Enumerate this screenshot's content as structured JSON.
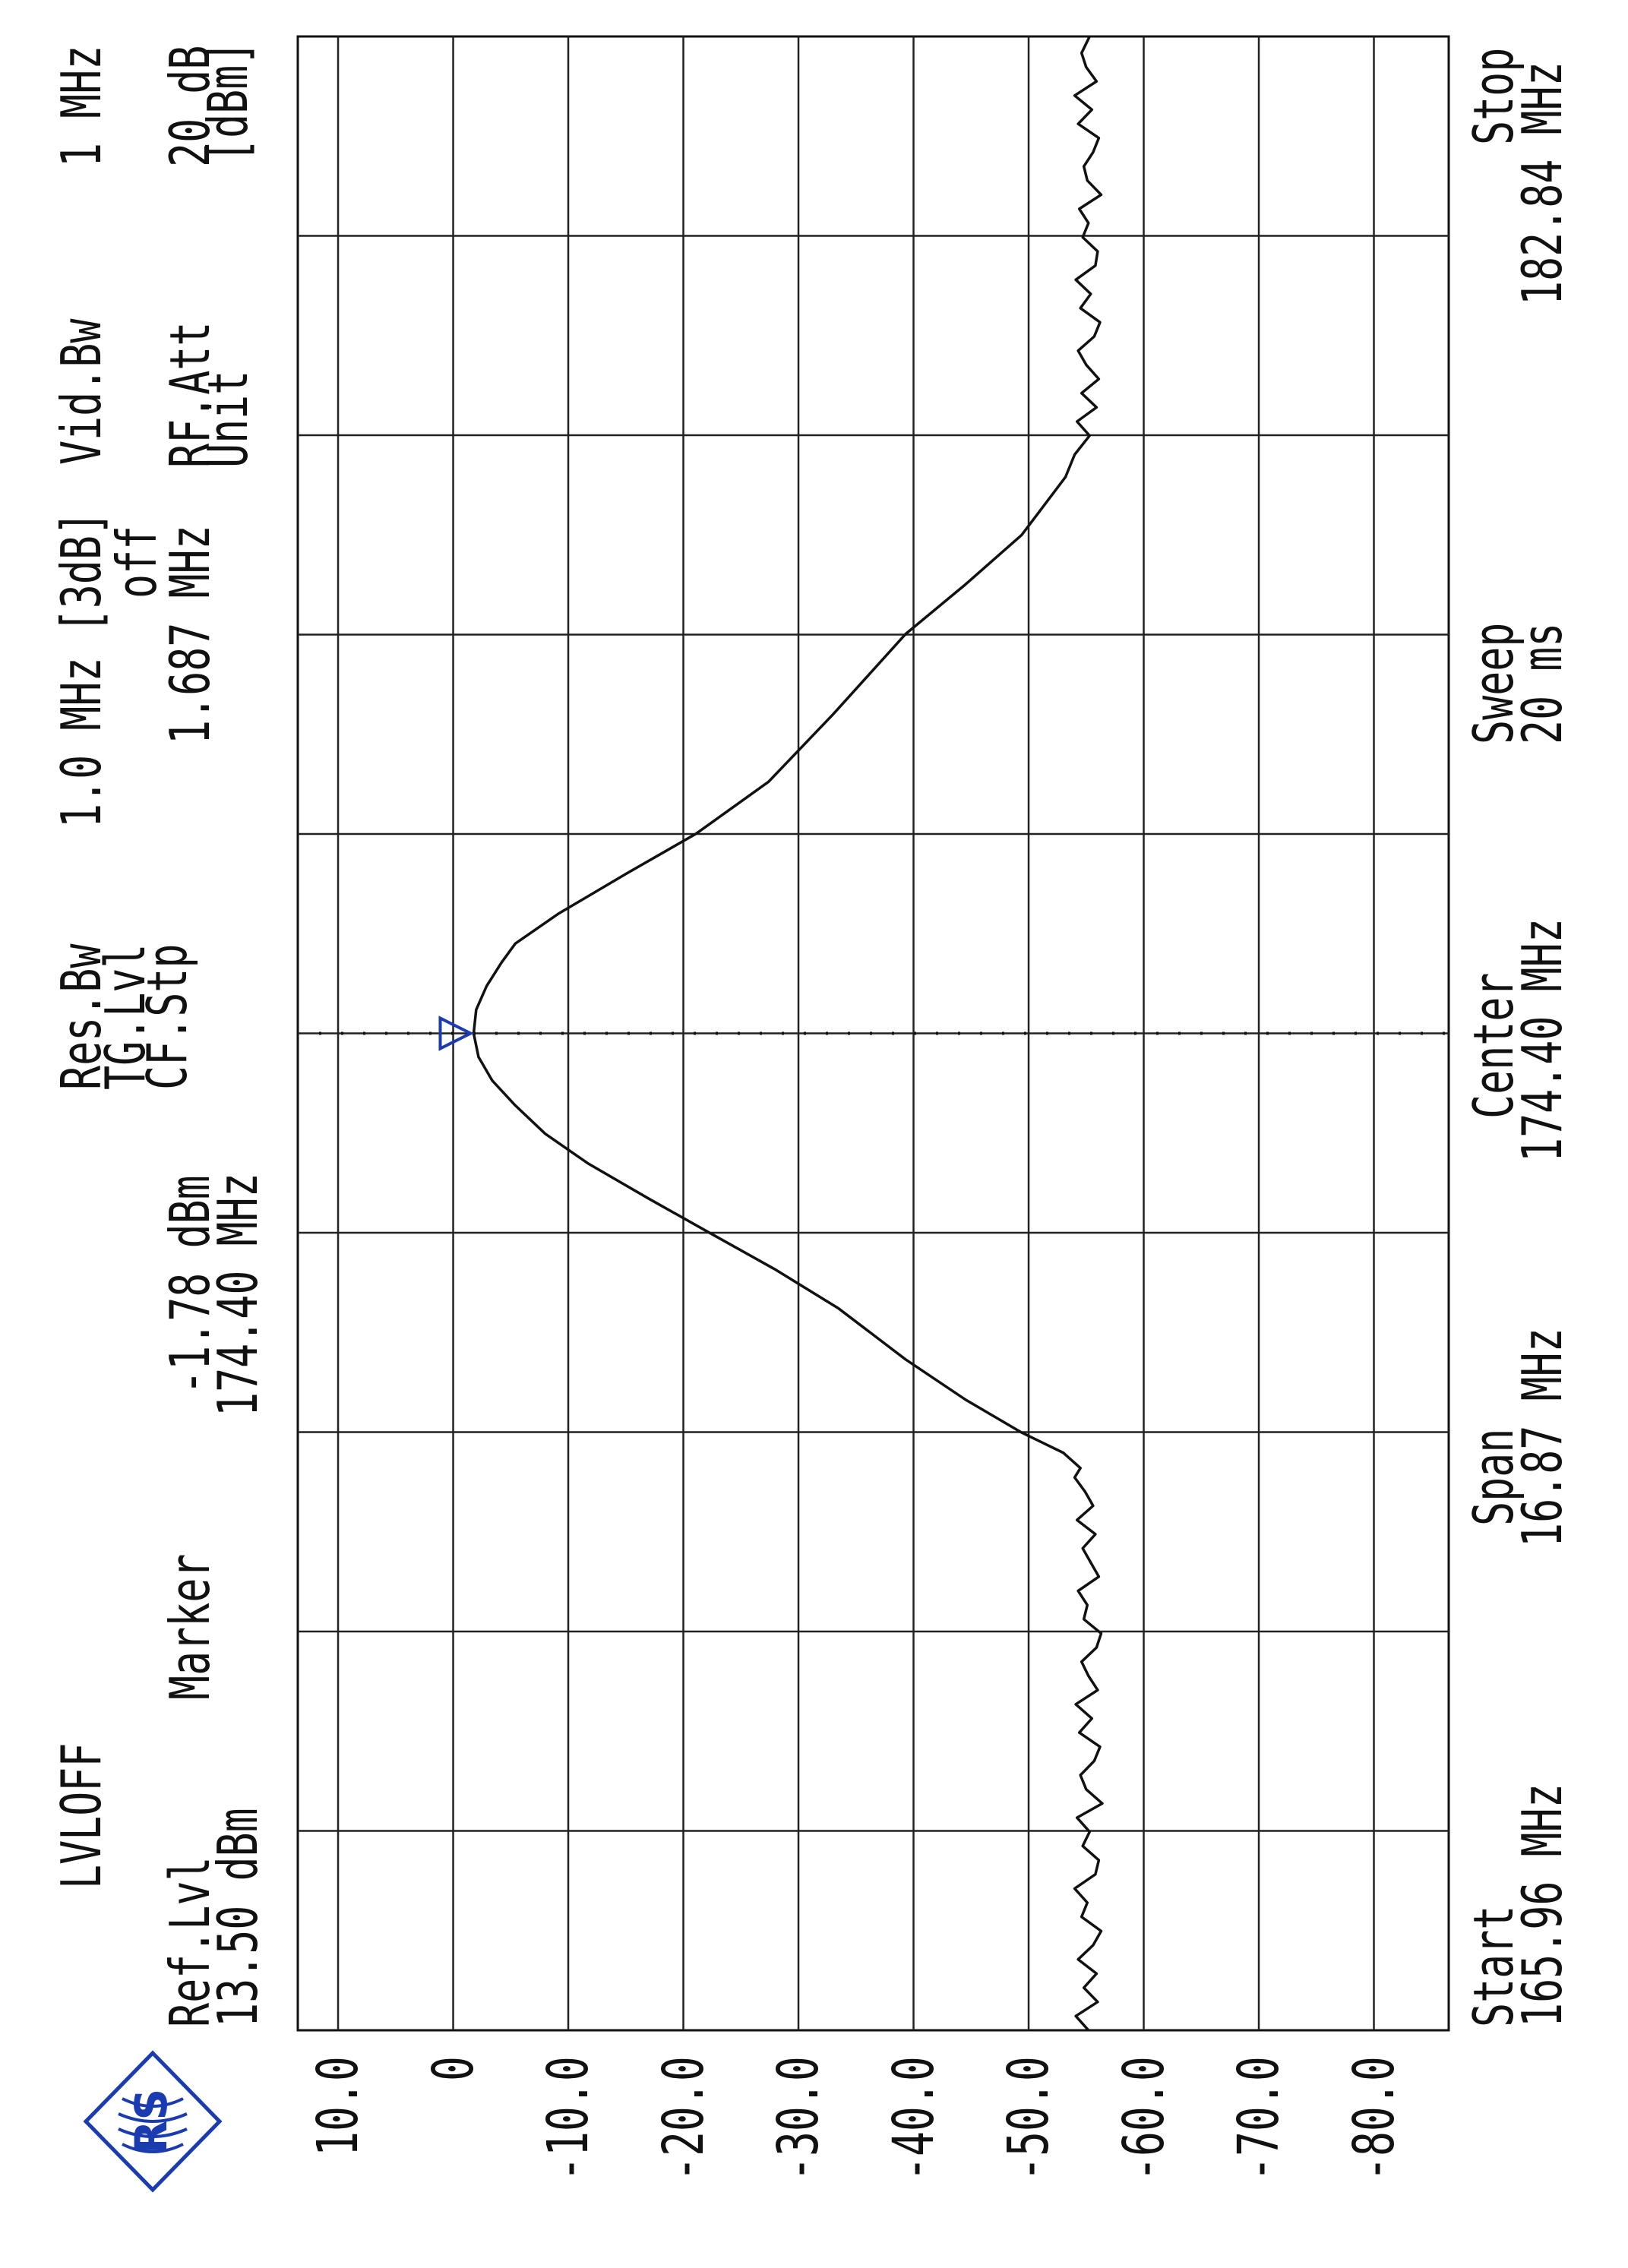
{
  "header": {
    "lvloff": "LVLOFF",
    "res_bw_label": "Res.Bw",
    "res_bw_value": "1.0 MHz [3dB]",
    "vid_bw_label": "Vid.Bw",
    "vid_bw_value": "1 MHz",
    "tg_lvl_label": "TG.Lvl",
    "tg_lvl_value": "off",
    "ref_lvl_label": "Ref.Lvl",
    "ref_lvl_value": "13.50 dBm",
    "marker_label": "Marker",
    "marker_level": "-1.78 dBm",
    "marker_freq": "174.40 MHz",
    "cf_stp_label": "CF.Stp",
    "cf_stp_value": "1.687 MHz",
    "rf_att_label": "RF.Att",
    "rf_att_value": "20 dB",
    "unit_label": "Unit",
    "unit_value": "[dBm]"
  },
  "footer": {
    "start_label": "Start",
    "start_value": "165.96 MHz",
    "span_label": "Span",
    "span_value": "16.87 MHz",
    "center_label": "Center",
    "center_value": "174.40 MHz",
    "sweep_label": "Sweep",
    "sweep_value": "20 ms",
    "stop_label": "Stop",
    "stop_value": "182.84 MHz"
  },
  "logo": {
    "text": "R&S",
    "color": "#1a3cb0"
  },
  "chart_data": {
    "type": "line",
    "orientation": "rotated 90° counter-clockwise (frequency runs bottom to top, level runs right to left)",
    "xlabel": "",
    "ylabel": "",
    "xlim": [
      165.96,
      182.84
    ],
    "ylim": [
      -86.5,
      13.5
    ],
    "x_divisions": 10,
    "y_ticks": [
      10,
      0,
      -10,
      -20,
      -30,
      -40,
      -50,
      -60,
      -70,
      -80
    ],
    "y_tick_labels": [
      "10.0",
      "0",
      "-10.0",
      "-20.0",
      "-30.0",
      "-40.0",
      "-50.0",
      "-60.0",
      "-70.0",
      "-80.0"
    ],
    "grid": true,
    "trace_color": "#111111",
    "marker": {
      "x": 174.4,
      "y": -1.78,
      "color": "#1a3cb0",
      "shape": "triangle"
    },
    "marker_line": {
      "x": 174.4,
      "style": "dotted"
    },
    "series": [
      {
        "points": [
          [
            165.96,
            -55.2
          ],
          [
            166.08,
            -54.1
          ],
          [
            166.2,
            -56.0
          ],
          [
            166.32,
            -54.8
          ],
          [
            166.44,
            -55.9
          ],
          [
            166.56,
            -54.3
          ],
          [
            166.68,
            -55.6
          ],
          [
            166.8,
            -56.3
          ],
          [
            166.92,
            -54.6
          ],
          [
            167.04,
            -55.1
          ],
          [
            167.16,
            -54.0
          ],
          [
            167.28,
            -55.8
          ],
          [
            167.4,
            -56.1
          ],
          [
            167.52,
            -54.7
          ],
          [
            167.64,
            -55.3
          ],
          [
            167.76,
            -54.2
          ],
          [
            167.88,
            -56.4
          ],
          [
            168.0,
            -55.0
          ],
          [
            168.12,
            -54.5
          ],
          [
            168.24,
            -55.7
          ],
          [
            168.36,
            -56.2
          ],
          [
            168.48,
            -54.4
          ],
          [
            168.6,
            -55.5
          ],
          [
            168.72,
            -54.1
          ],
          [
            168.84,
            -56.0
          ],
          [
            168.96,
            -55.2
          ],
          [
            169.08,
            -54.6
          ],
          [
            169.2,
            -55.9
          ],
          [
            169.32,
            -56.3
          ],
          [
            169.44,
            -54.8
          ],
          [
            169.56,
            -55.1
          ],
          [
            169.68,
            -54.3
          ],
          [
            169.8,
            -56.1
          ],
          [
            169.92,
            -55.4
          ],
          [
            170.04,
            -54.7
          ],
          [
            170.16,
            -55.8
          ],
          [
            170.28,
            -54.2
          ],
          [
            170.4,
            -55.6
          ],
          [
            170.52,
            -54.9
          ],
          [
            170.64,
            -54.0
          ],
          [
            170.72,
            -54.5
          ],
          [
            170.85,
            -53.0
          ],
          [
            171.02,
            -49.4
          ],
          [
            171.3,
            -44.5
          ],
          [
            171.64,
            -39.3
          ],
          [
            172.07,
            -33.5
          ],
          [
            172.4,
            -28.0
          ],
          [
            172.71,
            -22.3
          ],
          [
            173.0,
            -17.0
          ],
          [
            173.3,
            -11.7
          ],
          [
            173.55,
            -8.0
          ],
          [
            173.79,
            -5.4
          ],
          [
            174.0,
            -3.4
          ],
          [
            174.2,
            -2.2
          ],
          [
            174.4,
            -1.78
          ],
          [
            174.6,
            -2.0
          ],
          [
            174.8,
            -2.9
          ],
          [
            175.0,
            -4.2
          ],
          [
            175.16,
            -5.4
          ],
          [
            175.41,
            -9.1
          ],
          [
            175.75,
            -15.0
          ],
          [
            176.09,
            -21.1
          ],
          [
            176.53,
            -27.4
          ],
          [
            177.1,
            -33.0
          ],
          [
            177.78,
            -39.3
          ],
          [
            178.2,
            -44.5
          ],
          [
            178.62,
            -49.4
          ],
          [
            179.11,
            -53.2
          ],
          [
            179.3,
            -54.0
          ],
          [
            179.46,
            -55.3
          ],
          [
            179.58,
            -54.2
          ],
          [
            179.7,
            -55.9
          ],
          [
            179.82,
            -54.6
          ],
          [
            179.94,
            -56.1
          ],
          [
            180.06,
            -55.0
          ],
          [
            180.18,
            -54.3
          ],
          [
            180.3,
            -55.7
          ],
          [
            180.42,
            -56.2
          ],
          [
            180.54,
            -54.5
          ],
          [
            180.66,
            -55.4
          ],
          [
            180.78,
            -54.1
          ],
          [
            180.9,
            -55.8
          ],
          [
            181.02,
            -56.0
          ],
          [
            181.14,
            -54.7
          ],
          [
            181.26,
            -55.2
          ],
          [
            181.38,
            -54.4
          ],
          [
            181.5,
            -56.3
          ],
          [
            181.62,
            -55.1
          ],
          [
            181.74,
            -54.8
          ],
          [
            181.86,
            -55.6
          ],
          [
            181.98,
            -56.1
          ],
          [
            182.1,
            -54.3
          ],
          [
            182.22,
            -55.5
          ],
          [
            182.34,
            -54.0
          ],
          [
            182.46,
            -55.9
          ],
          [
            182.58,
            -55.0
          ],
          [
            182.7,
            -54.6
          ],
          [
            182.84,
            -55.3
          ]
        ]
      }
    ]
  }
}
